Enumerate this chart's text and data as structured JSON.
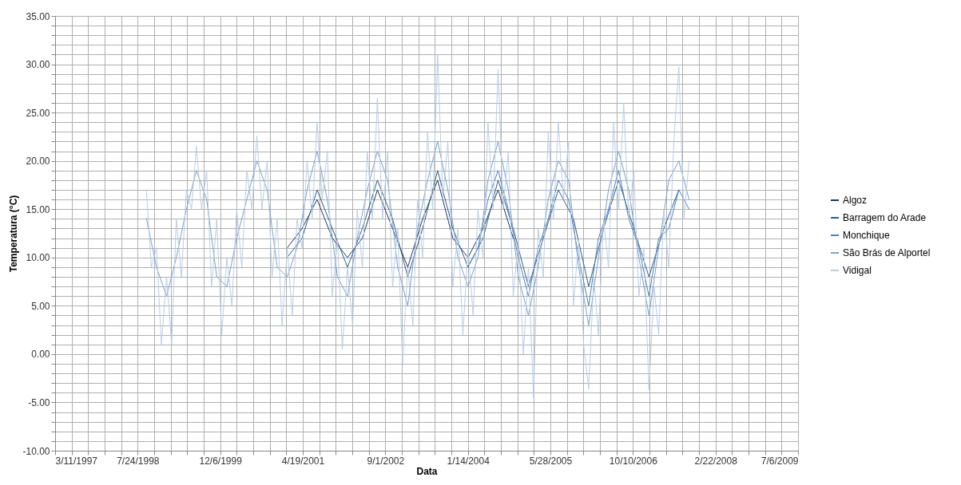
{
  "chart_data": {
    "type": "line",
    "xlabel": "Data",
    "ylabel": "Temperatura (°C)",
    "legend": "right",
    "grid": true,
    "line_style": "solid",
    "xlim": [
      "1997-03-11",
      "2009-07-06"
    ],
    "xticks": [
      {
        "value": "1997-03-11",
        "label": "3/11/1997"
      },
      {
        "value": "1997-06-19",
        "label": null
      },
      {
        "value": "1997-09-27",
        "label": null
      },
      {
        "value": "1998-01-05",
        "label": null
      },
      {
        "value": "1998-04-15",
        "label": null
      },
      {
        "value": "1998-07-24",
        "label": "7/24/1998"
      },
      {
        "value": "1998-11-01",
        "label": null
      },
      {
        "value": "1999-02-09",
        "label": null
      },
      {
        "value": "1999-05-20",
        "label": null
      },
      {
        "value": "1999-08-28",
        "label": null
      },
      {
        "value": "1999-12-06",
        "label": "12/6/1999"
      },
      {
        "value": "2000-03-15",
        "label": null
      },
      {
        "value": "2000-06-23",
        "label": null
      },
      {
        "value": "2000-10-01",
        "label": null
      },
      {
        "value": "2001-01-09",
        "label": null
      },
      {
        "value": "2001-04-19",
        "label": "4/19/2001"
      },
      {
        "value": "2001-07-28",
        "label": null
      },
      {
        "value": "2001-11-05",
        "label": null
      },
      {
        "value": "2002-02-13",
        "label": null
      },
      {
        "value": "2002-05-24",
        "label": null
      },
      {
        "value": "2002-09-01",
        "label": "9/1/2002"
      },
      {
        "value": "2002-12-10",
        "label": null
      },
      {
        "value": "2003-03-20",
        "label": null
      },
      {
        "value": "2003-06-28",
        "label": null
      },
      {
        "value": "2003-10-06",
        "label": null
      },
      {
        "value": "2004-01-14",
        "label": "1/14/2004"
      },
      {
        "value": "2004-04-23",
        "label": null
      },
      {
        "value": "2004-08-01",
        "label": null
      },
      {
        "value": "2004-11-09",
        "label": null
      },
      {
        "value": "2005-02-17",
        "label": null
      },
      {
        "value": "2005-05-28",
        "label": "5/28/2005"
      },
      {
        "value": "2005-09-05",
        "label": null
      },
      {
        "value": "2005-12-14",
        "label": null
      },
      {
        "value": "2006-03-24",
        "label": null
      },
      {
        "value": "2006-07-02",
        "label": null
      },
      {
        "value": "2006-10-10",
        "label": "10/10/2006"
      },
      {
        "value": "2007-01-18",
        "label": null
      },
      {
        "value": "2007-04-28",
        "label": null
      },
      {
        "value": "2007-08-06",
        "label": null
      },
      {
        "value": "2007-11-14",
        "label": null
      },
      {
        "value": "2008-02-22",
        "label": "2/22/2008"
      },
      {
        "value": "2008-06-01",
        "label": null
      },
      {
        "value": "2008-09-09",
        "label": null
      },
      {
        "value": "2008-12-18",
        "label": null
      },
      {
        "value": "2009-03-28",
        "label": null
      },
      {
        "value": "2009-07-06",
        "label": "7/6/2009"
      }
    ],
    "ylim": [
      -10,
      35
    ],
    "yticks": [
      {
        "value": -10,
        "label": "-10.00"
      },
      {
        "value": -9,
        "label": null
      },
      {
        "value": -8,
        "label": null
      },
      {
        "value": -7,
        "label": null
      },
      {
        "value": -6,
        "label": null
      },
      {
        "value": -5,
        "label": "-5.00"
      },
      {
        "value": -4,
        "label": null
      },
      {
        "value": -3,
        "label": null
      },
      {
        "value": -2,
        "label": null
      },
      {
        "value": -1,
        "label": null
      },
      {
        "value": 0,
        "label": "0.00"
      },
      {
        "value": 1,
        "label": null
      },
      {
        "value": 2,
        "label": null
      },
      {
        "value": 3,
        "label": null
      },
      {
        "value": 4,
        "label": null
      },
      {
        "value": 5,
        "label": "5.00"
      },
      {
        "value": 6,
        "label": null
      },
      {
        "value": 7,
        "label": null
      },
      {
        "value": 8,
        "label": null
      },
      {
        "value": 9,
        "label": null
      },
      {
        "value": 10,
        "label": "10.00"
      },
      {
        "value": 11,
        "label": null
      },
      {
        "value": 12,
        "label": null
      },
      {
        "value": 13,
        "label": null
      },
      {
        "value": 14,
        "label": null
      },
      {
        "value": 15,
        "label": "15.00"
      },
      {
        "value": 16,
        "label": null
      },
      {
        "value": 17,
        "label": null
      },
      {
        "value": 18,
        "label": null
      },
      {
        "value": 19,
        "label": null
      },
      {
        "value": 20,
        "label": "20.00"
      },
      {
        "value": 21,
        "label": null
      },
      {
        "value": 22,
        "label": null
      },
      {
        "value": 23,
        "label": null
      },
      {
        "value": 24,
        "label": null
      },
      {
        "value": 25,
        "label": "25.00"
      },
      {
        "value": 26,
        "label": null
      },
      {
        "value": 27,
        "label": null
      },
      {
        "value": 28,
        "label": null
      },
      {
        "value": 29,
        "label": null
      },
      {
        "value": 30,
        "label": "30.00"
      },
      {
        "value": 31,
        "label": null
      },
      {
        "value": 32,
        "label": null
      },
      {
        "value": 33,
        "label": null
      },
      {
        "value": 34,
        "label": null
      },
      {
        "value": 35,
        "label": "35.00"
      }
    ],
    "series": [
      {
        "name": "Algoz",
        "color": "#1f3864",
        "x": [
          "2001-01-15",
          "2001-04-15",
          "2001-07-15",
          "2001-10-15",
          "2002-01-15",
          "2002-04-15",
          "2002-07-15",
          "2002-10-15",
          "2003-01-15",
          "2003-04-15",
          "2003-07-15",
          "2003-10-15",
          "2004-01-15",
          "2004-04-15",
          "2004-07-15",
          "2004-10-15"
        ],
        "values": [
          11,
          13,
          16,
          12,
          10,
          12,
          17,
          13,
          9,
          14,
          18,
          12,
          10,
          13,
          17,
          12
        ]
      },
      {
        "name": "Barragem do Arade",
        "color": "#2e5c8a",
        "x": [
          "2001-01-15",
          "2001-04-15",
          "2001-07-15",
          "2001-10-15",
          "2002-01-15",
          "2002-04-15",
          "2002-07-15",
          "2002-10-15",
          "2003-01-15",
          "2003-04-15",
          "2003-07-15",
          "2003-10-15",
          "2004-01-15",
          "2004-04-15",
          "2004-07-15",
          "2004-10-15",
          "2005-01-15",
          "2005-04-15",
          "2005-07-15",
          "2005-10-15",
          "2006-01-15",
          "2006-04-15",
          "2006-07-15",
          "2006-10-15",
          "2007-01-15",
          "2007-04-15",
          "2007-07-15"
        ],
        "values": [
          10,
          12,
          17,
          13,
          9,
          13,
          18,
          14,
          8,
          13,
          19,
          13,
          9,
          12,
          18,
          13,
          7,
          12,
          17,
          14,
          7,
          13,
          18,
          13,
          8,
          13,
          17
        ]
      },
      {
        "name": "Monchique",
        "color": "#4f81bd",
        "x": [
          "2004-01-15",
          "2004-03-15",
          "2004-05-15",
          "2004-07-15",
          "2004-09-15",
          "2004-11-15",
          "2005-01-15",
          "2005-03-15",
          "2005-05-15",
          "2005-07-15",
          "2005-09-15",
          "2005-11-15",
          "2006-01-15",
          "2006-03-15",
          "2006-05-15",
          "2006-07-15",
          "2006-09-15",
          "2006-11-15",
          "2007-01-15",
          "2007-03-15",
          "2007-05-15",
          "2007-07-15",
          "2007-09-15"
        ],
        "values": [
          9,
          11,
          16,
          19,
          15,
          10,
          6,
          11,
          14,
          18,
          16,
          10,
          5,
          12,
          15,
          19,
          14,
          11,
          6,
          12,
          13,
          17,
          15
        ]
      },
      {
        "name": "São Brás de Alportel",
        "color": "#7da0cc",
        "x": [
          "1998-09-15",
          "1998-11-15",
          "1999-01-15",
          "1999-03-15",
          "1999-05-15",
          "1999-07-15",
          "1999-09-15",
          "1999-11-15",
          "2000-01-15",
          "2000-03-15",
          "2000-05-15",
          "2000-07-15",
          "2000-09-15",
          "2000-11-15",
          "2001-01-15",
          "2001-03-15",
          "2001-05-15",
          "2001-07-15",
          "2001-09-15",
          "2001-11-15",
          "2002-01-15",
          "2002-03-15",
          "2002-05-15",
          "2002-07-15",
          "2002-09-15",
          "2002-11-15",
          "2003-01-15",
          "2003-03-15",
          "2003-05-15",
          "2003-07-15",
          "2003-09-15",
          "2003-11-15",
          "2004-01-15",
          "2004-03-15",
          "2004-05-15",
          "2004-07-15",
          "2004-09-15",
          "2004-11-15",
          "2005-01-15",
          "2005-03-15",
          "2005-05-15",
          "2005-07-15",
          "2005-09-15",
          "2005-11-15",
          "2006-01-15",
          "2006-03-15",
          "2006-05-15",
          "2006-07-15",
          "2006-09-15",
          "2006-11-15",
          "2007-01-15",
          "2007-03-15",
          "2007-05-15",
          "2007-07-15",
          "2007-09-15"
        ],
        "values": [
          14,
          9,
          6,
          10,
          15,
          19,
          16,
          8,
          7,
          12,
          16,
          20,
          17,
          9,
          8,
          11,
          17,
          21,
          16,
          8,
          6,
          12,
          17,
          21,
          18,
          9,
          5,
          13,
          18,
          22,
          17,
          10,
          7,
          10,
          18,
          22,
          17,
          8,
          4,
          9,
          16,
          20,
          18,
          9,
          3,
          10,
          17,
          21,
          17,
          10,
          4,
          11,
          18,
          20,
          16
        ]
      },
      {
        "name": "Vidigal",
        "color": "#b9cde5",
        "x": [
          "1998-09-15",
          "1998-10-15",
          "1998-11-15",
          "1998-12-15",
          "1999-01-15",
          "1999-02-15",
          "1999-03-15",
          "1999-04-15",
          "1999-05-15",
          "1999-06-15",
          "1999-07-15",
          "1999-08-15",
          "1999-09-15",
          "1999-10-15",
          "1999-11-15",
          "1999-12-15",
          "2000-01-15",
          "2000-02-15",
          "2000-03-15",
          "2000-04-15",
          "2000-05-15",
          "2000-06-15",
          "2000-07-15",
          "2000-08-15",
          "2000-09-15",
          "2000-10-15",
          "2000-11-15",
          "2000-12-15",
          "2001-01-15",
          "2001-02-15",
          "2001-03-15",
          "2001-04-15",
          "2001-05-15",
          "2001-06-15",
          "2001-07-15",
          "2001-08-15",
          "2001-09-15",
          "2001-10-15",
          "2001-11-15",
          "2001-12-15",
          "2002-01-15",
          "2002-02-15",
          "2002-03-15",
          "2002-04-15",
          "2002-05-15",
          "2002-06-15",
          "2002-07-15",
          "2002-08-15",
          "2002-09-15",
          "2002-10-15",
          "2002-11-15",
          "2002-12-15",
          "2003-01-15",
          "2003-02-15",
          "2003-03-15",
          "2003-04-15",
          "2003-05-15",
          "2003-06-15",
          "2003-07-15",
          "2003-08-15",
          "2003-09-15",
          "2003-10-15",
          "2003-11-15",
          "2003-12-15",
          "2004-01-15",
          "2004-02-15",
          "2004-03-15",
          "2004-04-15",
          "2004-05-15",
          "2004-06-15",
          "2004-07-15",
          "2004-08-15",
          "2004-09-15",
          "2004-10-15",
          "2004-11-15",
          "2004-12-15",
          "2005-01-15",
          "2005-02-15",
          "2005-03-15",
          "2005-04-15",
          "2005-05-15",
          "2005-06-15",
          "2005-07-15",
          "2005-08-15",
          "2005-09-15",
          "2005-10-15",
          "2005-11-15",
          "2005-12-15",
          "2006-01-15",
          "2006-02-15",
          "2006-03-15",
          "2006-04-15",
          "2006-05-15",
          "2006-06-15",
          "2006-07-15",
          "2006-08-15",
          "2006-09-15",
          "2006-10-15",
          "2006-11-15",
          "2006-12-15",
          "2007-01-15",
          "2007-02-15",
          "2007-03-15",
          "2007-04-15",
          "2007-05-15",
          "2007-06-15",
          "2007-07-15",
          "2007-08-15",
          "2007-09-15"
        ],
        "values": [
          17,
          9,
          11,
          1,
          8,
          1,
          14,
          8,
          17,
          15,
          21.5,
          15,
          19,
          7,
          14,
          2,
          10,
          5,
          15,
          9,
          19,
          15,
          22.6,
          15,
          20,
          8,
          14,
          3,
          11,
          4,
          14,
          11,
          20,
          14,
          24,
          16,
          21,
          6,
          12,
          0.5,
          9,
          3,
          15,
          9,
          21,
          14,
          26.5,
          14,
          21,
          7,
          13,
          -1,
          9,
          3,
          16,
          10,
          23,
          15,
          31,
          16,
          22,
          7,
          13,
          2,
          11,
          4,
          15,
          10,
          24,
          15,
          29.5,
          15,
          21,
          6,
          12,
          0,
          9,
          -4.5,
          13,
          8,
          23,
          14,
          24,
          16,
          22,
          5,
          12,
          1,
          -3.6,
          8,
          2,
          14,
          9,
          24,
          15,
          26,
          14,
          19,
          6,
          11,
          -3.7,
          7,
          2,
          15,
          9,
          22,
          29.7,
          14,
          20
        ]
      }
    ]
  }
}
